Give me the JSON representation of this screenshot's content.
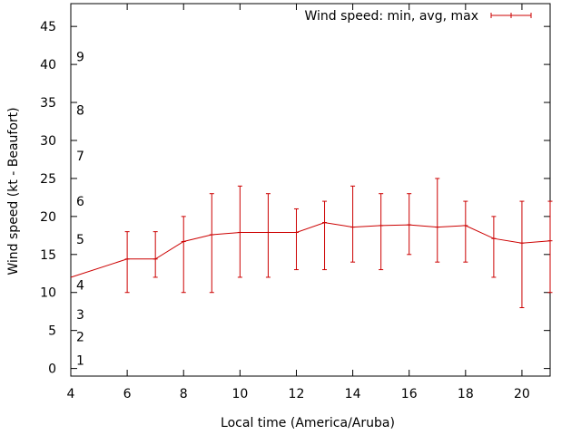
{
  "chart_data": {
    "type": "line",
    "title": "",
    "xlabel": "Local time (America/Aruba)",
    "ylabel": "Wind speed (kt - Beaufort)",
    "xlim": [
      4,
      21
    ],
    "ylim": [
      -1,
      48
    ],
    "x_ticks": [
      4,
      6,
      8,
      10,
      12,
      14,
      16,
      18,
      20
    ],
    "y_ticks": [
      0,
      5,
      10,
      15,
      20,
      25,
      30,
      35,
      40,
      45
    ],
    "beaufort_labels": [
      {
        "label": "1",
        "value": 1.1
      },
      {
        "label": "2",
        "value": 4.2
      },
      {
        "label": "3",
        "value": 7.1
      },
      {
        "label": "4",
        "value": 11
      },
      {
        "label": "5",
        "value": 17
      },
      {
        "label": "6",
        "value": 22
      },
      {
        "label": "7",
        "value": 28
      },
      {
        "label": "8",
        "value": 34
      },
      {
        "label": "9",
        "value": 41
      }
    ],
    "legend": {
      "label": "Wind speed: min, avg, max",
      "position": "top-right"
    },
    "color": "#cc0000",
    "series": [
      {
        "name": "Wind speed: min, avg, max",
        "points": [
          {
            "x": 4,
            "avg": 12.0,
            "min": null,
            "max": null
          },
          {
            "x": 6,
            "avg": 14.4,
            "min": 10,
            "max": 18
          },
          {
            "x": 7,
            "avg": 14.4,
            "min": 12,
            "max": 18
          },
          {
            "x": 8,
            "avg": 16.7,
            "min": 10,
            "max": 20
          },
          {
            "x": 9,
            "avg": 17.6,
            "min": 10,
            "max": 23
          },
          {
            "x": 10,
            "avg": 17.9,
            "min": 12,
            "max": 24
          },
          {
            "x": 11,
            "avg": 17.9,
            "min": 12,
            "max": 23
          },
          {
            "x": 12,
            "avg": 17.9,
            "min": 13,
            "max": 21
          },
          {
            "x": 13,
            "avg": 19.2,
            "min": 13,
            "max": 22
          },
          {
            "x": 14,
            "avg": 18.6,
            "min": 14,
            "max": 24
          },
          {
            "x": 15,
            "avg": 18.8,
            "min": 13,
            "max": 23
          },
          {
            "x": 16,
            "avg": 18.9,
            "min": 15,
            "max": 23
          },
          {
            "x": 17,
            "avg": 18.6,
            "min": 14,
            "max": 25
          },
          {
            "x": 18,
            "avg": 18.8,
            "min": 14,
            "max": 22
          },
          {
            "x": 19,
            "avg": 17.1,
            "min": 12,
            "max": 20
          },
          {
            "x": 20,
            "avg": 16.5,
            "min": 8,
            "max": 22
          },
          {
            "x": 21,
            "avg": 16.8,
            "min": 10,
            "max": 22
          }
        ]
      }
    ]
  }
}
